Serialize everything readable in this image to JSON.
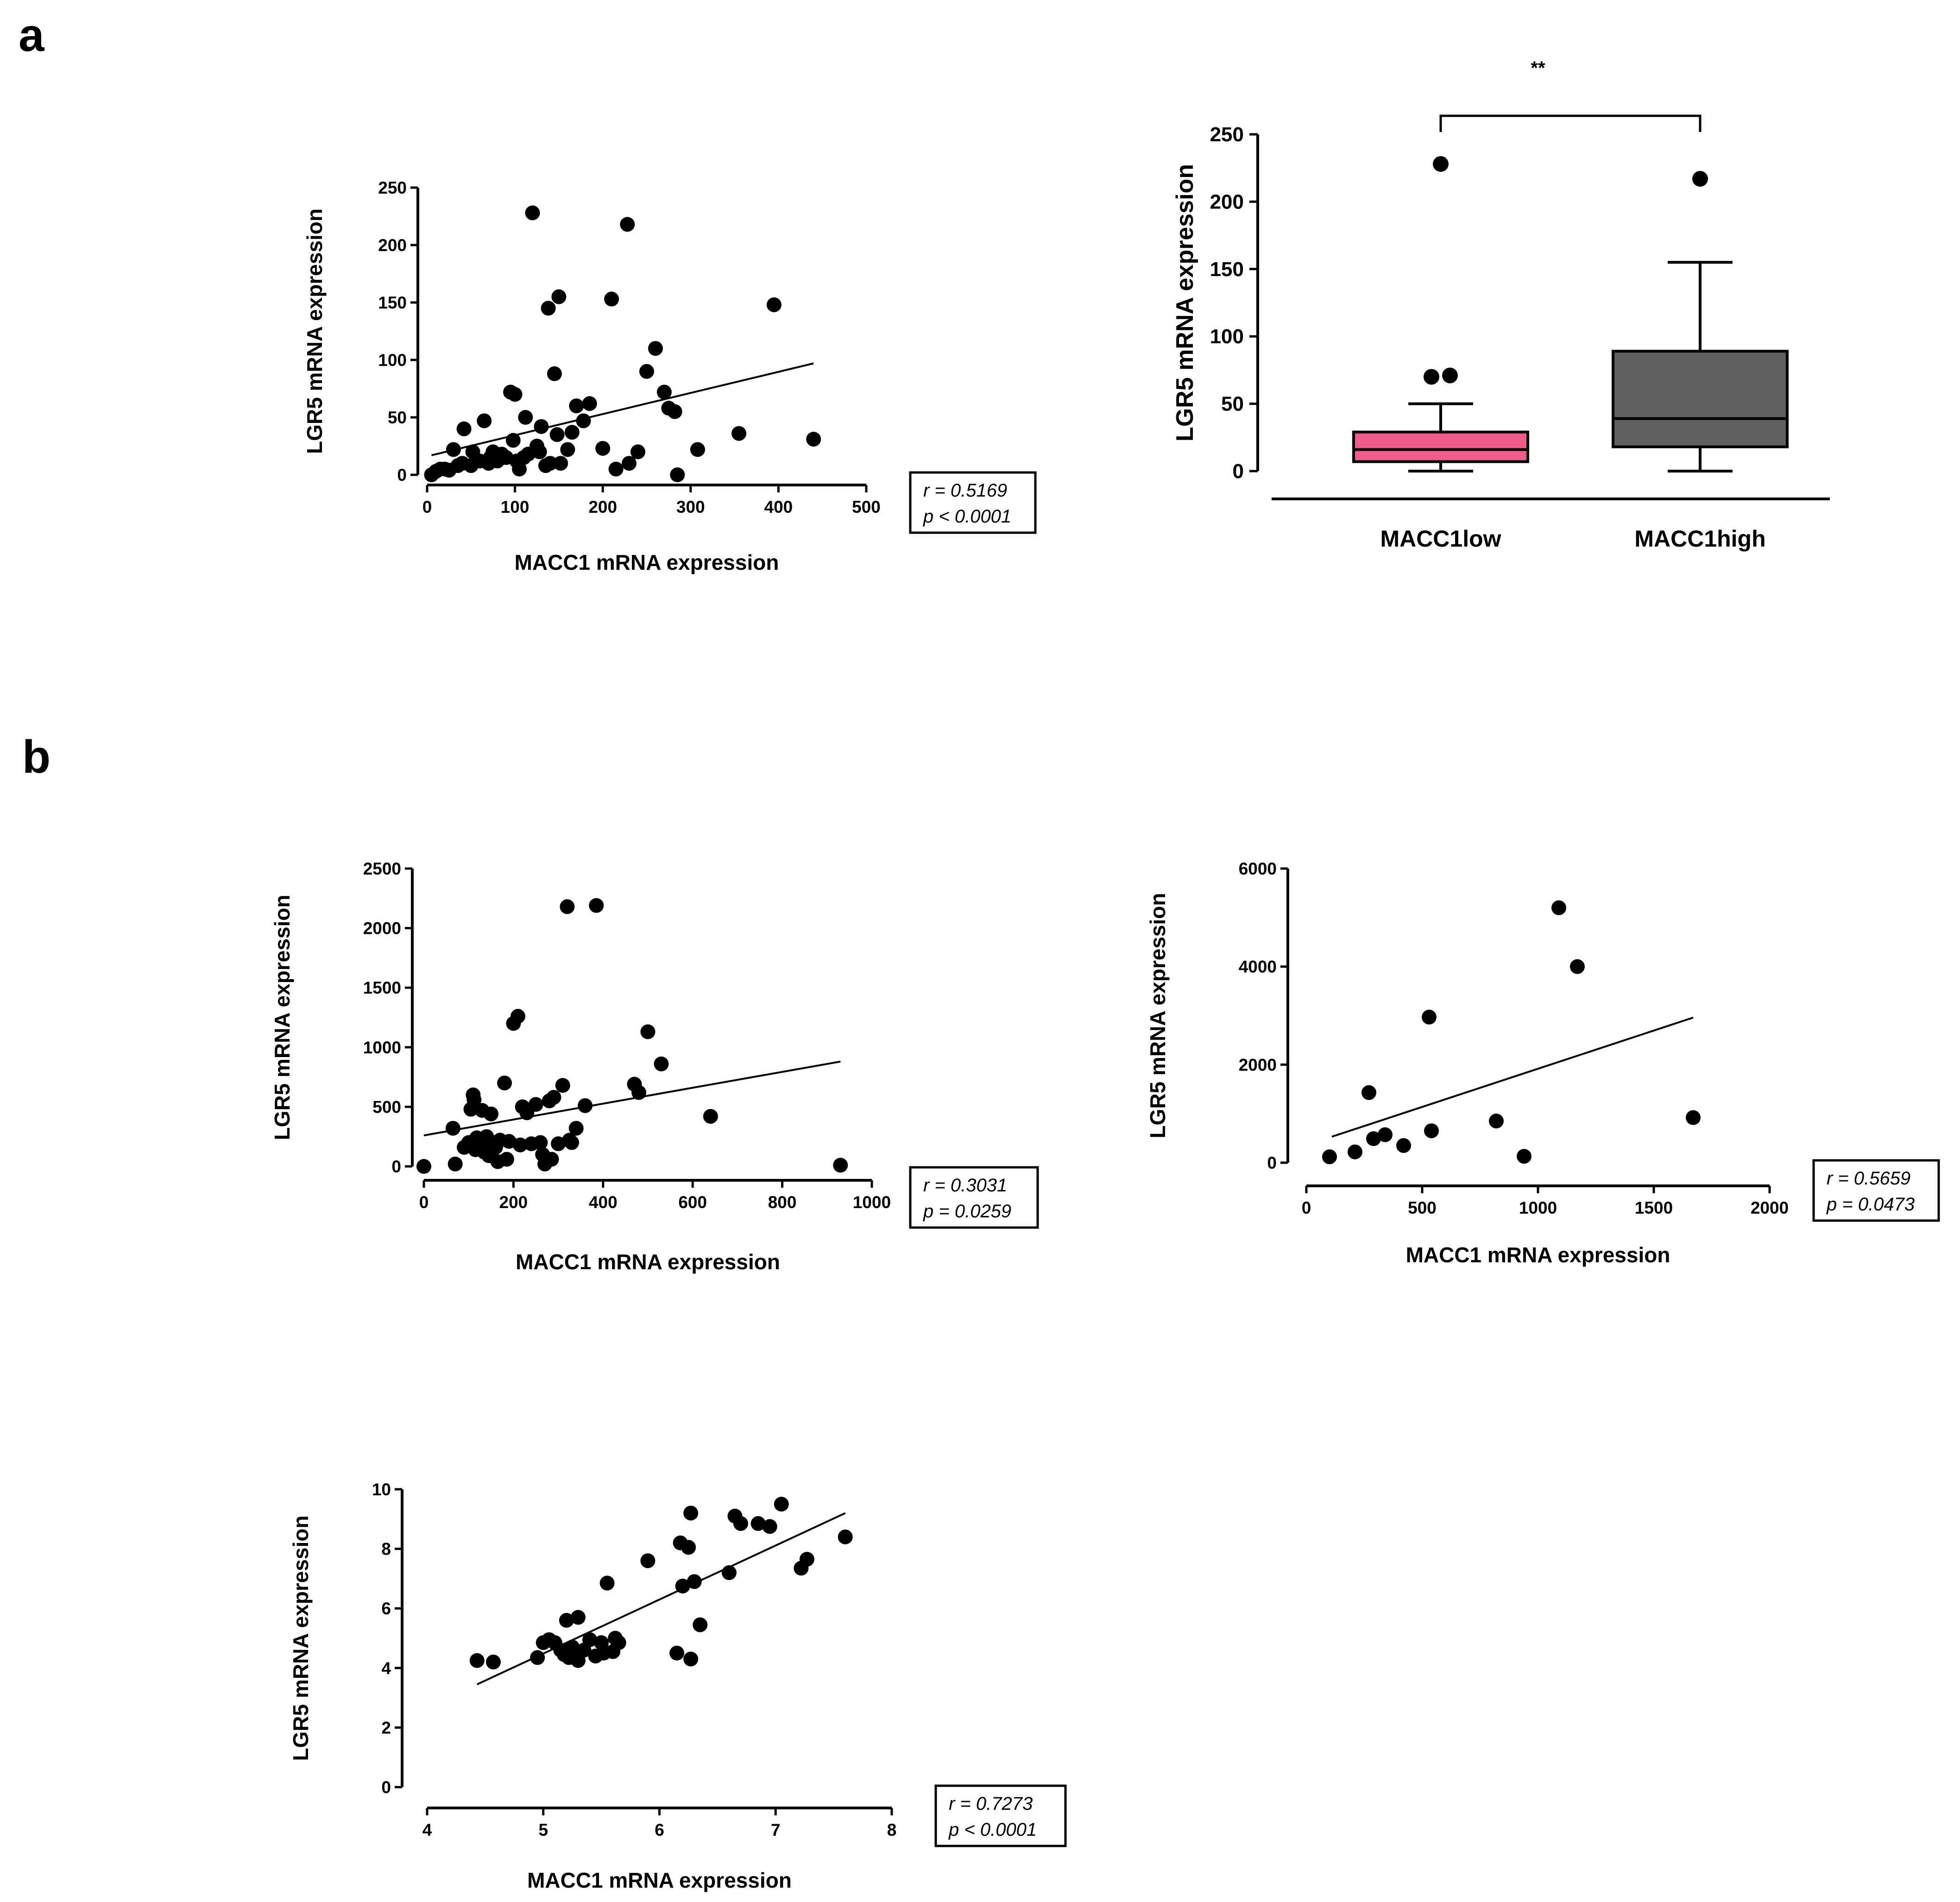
{
  "panel_labels": {
    "a": "a",
    "b": "b"
  },
  "chart_data": [
    {
      "id": "a_scatter",
      "type": "scatter",
      "xlabel": "MACC1 mRNA expression",
      "ylabel": "LGR5 mRNA expression",
      "xlim": [
        0,
        500
      ],
      "ylim": [
        0,
        250
      ],
      "xticks": [
        0,
        100,
        200,
        300,
        400,
        500
      ],
      "yticks": [
        0,
        50,
        100,
        150,
        200,
        250
      ],
      "fit": [
        [
          5,
          17
        ],
        [
          440,
          97
        ]
      ],
      "stats": [
        "r = 0.5169",
        "p < 0.0001"
      ],
      "points": [
        [
          5,
          0
        ],
        [
          10,
          3
        ],
        [
          15,
          5
        ],
        [
          20,
          5
        ],
        [
          25,
          4
        ],
        [
          30,
          22
        ],
        [
          35,
          8
        ],
        [
          40,
          10
        ],
        [
          42,
          40
        ],
        [
          50,
          8
        ],
        [
          52,
          20
        ],
        [
          60,
          12
        ],
        [
          65,
          47
        ],
        [
          70,
          10
        ],
        [
          72,
          15
        ],
        [
          75,
          20
        ],
        [
          80,
          12
        ],
        [
          85,
          18
        ],
        [
          90,
          15
        ],
        [
          95,
          72
        ],
        [
          98,
          30
        ],
        [
          100,
          70
        ],
        [
          102,
          12
        ],
        [
          105,
          5
        ],
        [
          110,
          15
        ],
        [
          112,
          50
        ],
        [
          115,
          18
        ],
        [
          120,
          228
        ],
        [
          125,
          25
        ],
        [
          128,
          20
        ],
        [
          130,
          42
        ],
        [
          135,
          8
        ],
        [
          138,
          145
        ],
        [
          140,
          10
        ],
        [
          145,
          88
        ],
        [
          148,
          35
        ],
        [
          150,
          155
        ],
        [
          152,
          10
        ],
        [
          160,
          22
        ],
        [
          165,
          37
        ],
        [
          170,
          60
        ],
        [
          178,
          47
        ],
        [
          185,
          62
        ],
        [
          200,
          23
        ],
        [
          210,
          153
        ],
        [
          215,
          5
        ],
        [
          228,
          218
        ],
        [
          230,
          10
        ],
        [
          240,
          20
        ],
        [
          250,
          90
        ],
        [
          260,
          110
        ],
        [
          270,
          72
        ],
        [
          275,
          58
        ],
        [
          282,
          55
        ],
        [
          285,
          0
        ],
        [
          308,
          22
        ],
        [
          355,
          36
        ],
        [
          395,
          148
        ],
        [
          440,
          31
        ]
      ]
    },
    {
      "id": "a_box",
      "type": "box",
      "ylabel": "LGR5 mRNA expression",
      "ylim": [
        0,
        250
      ],
      "yticks": [
        0,
        50,
        100,
        150,
        200,
        250
      ],
      "categories": [
        "MACC1low",
        "MACC1high"
      ],
      "colors": [
        "#f05c8a",
        "#606060"
      ],
      "boxes": [
        {
          "min": 0,
          "q1": 7,
          "median": 16,
          "q3": 29,
          "max": 50,
          "outliers": [
            70,
            71,
            228
          ]
        },
        {
          "min": 0,
          "q1": 18,
          "median": 39,
          "q3": 89,
          "max": 155,
          "outliers": [
            217
          ]
        }
      ],
      "significance": "**"
    },
    {
      "id": "b_scatter1",
      "type": "scatter",
      "xlabel": "MACC1 mRNA expression",
      "ylabel": "LGR5 mRNA expression",
      "xlim": [
        0,
        1000
      ],
      "ylim": [
        0,
        2500
      ],
      "xticks": [
        0,
        200,
        400,
        600,
        800,
        1000
      ],
      "yticks": [
        0,
        500,
        1000,
        1500,
        2000,
        2500
      ],
      "fit": [
        [
          0,
          260
        ],
        [
          930,
          880
        ]
      ],
      "stats": [
        "r = 0.3031",
        "p = 0.0259"
      ],
      "points": [
        [
          0,
          0
        ],
        [
          65,
          320
        ],
        [
          70,
          20
        ],
        [
          90,
          160
        ],
        [
          100,
          200
        ],
        [
          105,
          480
        ],
        [
          110,
          600
        ],
        [
          112,
          560
        ],
        [
          115,
          140
        ],
        [
          118,
          240
        ],
        [
          120,
          220
        ],
        [
          125,
          180
        ],
        [
          130,
          470
        ],
        [
          135,
          120
        ],
        [
          140,
          250
        ],
        [
          145,
          90
        ],
        [
          150,
          440
        ],
        [
          155,
          200
        ],
        [
          160,
          160
        ],
        [
          165,
          40
        ],
        [
          170,
          220
        ],
        [
          180,
          700
        ],
        [
          185,
          60
        ],
        [
          190,
          210
        ],
        [
          200,
          1200
        ],
        [
          210,
          1260
        ],
        [
          215,
          180
        ],
        [
          220,
          500
        ],
        [
          230,
          450
        ],
        [
          240,
          190
        ],
        [
          250,
          520
        ],
        [
          260,
          200
        ],
        [
          265,
          100
        ],
        [
          270,
          20
        ],
        [
          280,
          550
        ],
        [
          285,
          60
        ],
        [
          290,
          580
        ],
        [
          300,
          190
        ],
        [
          310,
          680
        ],
        [
          320,
          2180
        ],
        [
          325,
          220
        ],
        [
          330,
          200
        ],
        [
          340,
          320
        ],
        [
          360,
          510
        ],
        [
          385,
          2190
        ],
        [
          470,
          690
        ],
        [
          480,
          620
        ],
        [
          500,
          1130
        ],
        [
          530,
          860
        ],
        [
          640,
          420
        ],
        [
          930,
          10
        ]
      ]
    },
    {
      "id": "b_scatter2",
      "type": "scatter",
      "xlabel": "MACC1 mRNA expression",
      "ylabel": "LGR5 mRNA expression",
      "xlim": [
        0,
        2000
      ],
      "ylim": [
        0,
        6000
      ],
      "xticks": [
        0,
        500,
        1000,
        1500,
        2000
      ],
      "yticks": [
        0,
        2000,
        4000,
        6000
      ],
      "fit": [
        [
          110,
          530
        ],
        [
          1670,
          2960
        ]
      ],
      "stats": [
        "r = 0.5659",
        "p = 0.0473"
      ],
      "points": [
        [
          100,
          120
        ],
        [
          210,
          220
        ],
        [
          270,
          1430
        ],
        [
          290,
          490
        ],
        [
          340,
          570
        ],
        [
          420,
          350
        ],
        [
          530,
          2970
        ],
        [
          540,
          650
        ],
        [
          820,
          850
        ],
        [
          940,
          130
        ],
        [
          1090,
          5200
        ],
        [
          1170,
          4000
        ],
        [
          1670,
          920
        ]
      ]
    },
    {
      "id": "b_scatter3",
      "type": "scatter",
      "xlabel": "MACC1 mRNA expression",
      "ylabel": "LGR5 mRNA expression",
      "xlim": [
        4,
        8
      ],
      "ylim": [
        0,
        10
      ],
      "xticks": [
        4,
        5,
        6,
        7,
        8
      ],
      "yticks": [
        0,
        2,
        4,
        6,
        8,
        10
      ],
      "fit": [
        [
          4.43,
          3.45
        ],
        [
          7.6,
          9.2
        ]
      ],
      "stats": [
        "r = 0.7273",
        "p < 0.0001"
      ],
      "points": [
        [
          4.43,
          4.25
        ],
        [
          4.57,
          4.2
        ],
        [
          4.95,
          4.35
        ],
        [
          5.0,
          4.85
        ],
        [
          5.05,
          4.95
        ],
        [
          5.1,
          4.85
        ],
        [
          5.15,
          4.6
        ],
        [
          5.18,
          4.45
        ],
        [
          5.2,
          5.6
        ],
        [
          5.22,
          4.35
        ],
        [
          5.25,
          4.7
        ],
        [
          5.28,
          4.5
        ],
        [
          5.3,
          4.25
        ],
        [
          5.3,
          5.7
        ],
        [
          5.35,
          4.6
        ],
        [
          5.4,
          4.95
        ],
        [
          5.45,
          4.4
        ],
        [
          5.5,
          4.85
        ],
        [
          5.52,
          4.5
        ],
        [
          5.55,
          6.85
        ],
        [
          5.6,
          4.55
        ],
        [
          5.62,
          5.0
        ],
        [
          5.65,
          4.85
        ],
        [
          5.9,
          7.6
        ],
        [
          6.15,
          4.5
        ],
        [
          6.18,
          8.2
        ],
        [
          6.2,
          6.75
        ],
        [
          6.25,
          8.05
        ],
        [
          6.27,
          4.3
        ],
        [
          6.27,
          9.2
        ],
        [
          6.3,
          6.9
        ],
        [
          6.35,
          5.45
        ],
        [
          6.6,
          7.2
        ],
        [
          6.65,
          9.1
        ],
        [
          6.7,
          8.85
        ],
        [
          6.85,
          8.85
        ],
        [
          6.95,
          8.75
        ],
        [
          7.05,
          9.5
        ],
        [
          7.22,
          7.35
        ],
        [
          7.27,
          7.65
        ],
        [
          7.6,
          8.4
        ]
      ]
    }
  ]
}
